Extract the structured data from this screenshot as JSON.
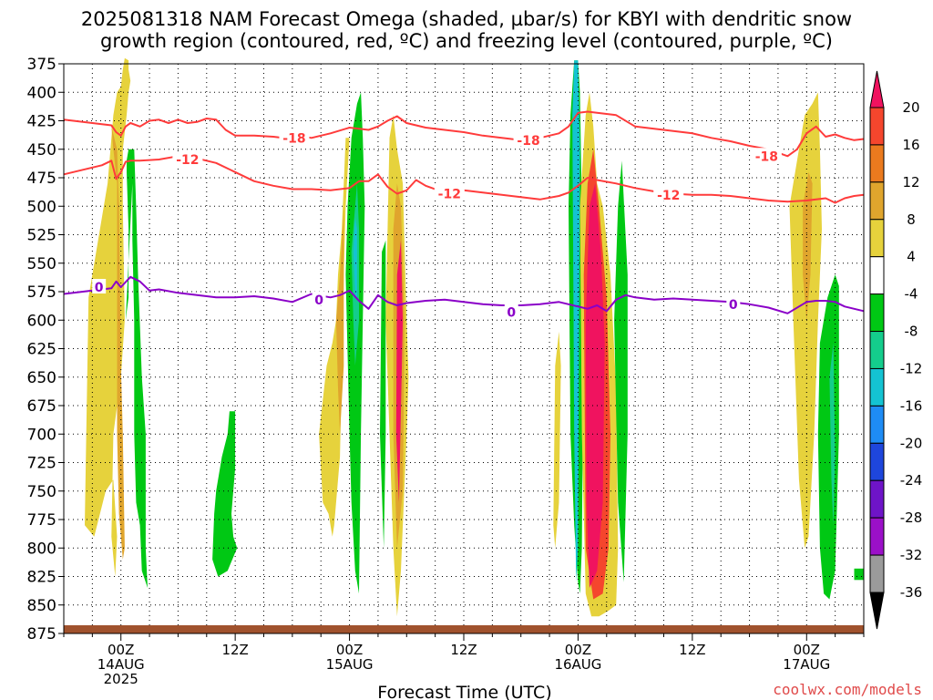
{
  "chart_data": {
    "type": "heatmap",
    "title_line1": "2025081318 NAM Forecast Omega (shaded, µbar/s) for KBYI with dendritic snow",
    "title_line2": "growth region (contoured, red, ºC) and freezing level (contoured, purple, ºC)",
    "xlabel": "Forecast Time (UTC)",
    "credit": "coolwx.com/models",
    "y_axis": {
      "unit": "mb",
      "reversed": true,
      "ylim": [
        875,
        375
      ],
      "ticks": [
        "375",
        "400",
        "425",
        "450",
        "475",
        "500",
        "525",
        "550",
        "575",
        "600",
        "625",
        "650",
        "675",
        "700",
        "725",
        "750",
        "775",
        "800",
        "825",
        "850",
        "875"
      ]
    },
    "x_axis": {
      "unit": "forecast hour",
      "xlim": [
        0,
        84
      ],
      "ticks": [
        {
          "hour": 6,
          "line1": "00Z",
          "line2": "14AUG",
          "line3": "2025"
        },
        {
          "hour": 18,
          "line1": "12Z",
          "line2": "",
          "line3": ""
        },
        {
          "hour": 30,
          "line1": "00Z",
          "line2": "15AUG",
          "line3": ""
        },
        {
          "hour": 42,
          "line1": "12Z",
          "line2": "",
          "line3": ""
        },
        {
          "hour": 54,
          "line1": "00Z",
          "line2": "16AUG",
          "line3": ""
        },
        {
          "hour": 66,
          "line1": "12Z",
          "line2": "",
          "line3": ""
        },
        {
          "hour": 78,
          "line1": "00Z",
          "line2": "17AUG",
          "line3": ""
        }
      ]
    },
    "colorbar": {
      "labels": [
        "20",
        "16",
        "12",
        "8",
        "4",
        "-4",
        "-8",
        "-12",
        "-16",
        "-20",
        "-24",
        "-28",
        "-32",
        "-36"
      ],
      "colors_top_to_bottom": [
        "#f0135f",
        "#f5462d",
        "#eb7a1e",
        "#e0a52d",
        "#e6d23c",
        "#ffffff",
        "#00c814",
        "#14cd8c",
        "#14c3d2",
        "#1e8cf5",
        "#1e46dc",
        "#6e14c8",
        "#9b10c8",
        "#9b9b9b",
        "#000000"
      ]
    },
    "ground_color": "#a0522d",
    "omega_regions": [
      {
        "level": "+4",
        "color": "#e6d23c",
        "x": [
          5.6,
          5.2,
          4.6,
          2.6,
          2.2,
          3.2,
          4.4,
          5.2,
          5.6,
          5.4,
          5.0,
          5.2,
          6.0,
          6.4,
          6.2,
          6.2,
          6.6,
          6.8,
          7.0,
          6.8,
          6.8,
          6.4,
          6.2,
          6.0
        ],
        "p": [
          400,
          420,
          480,
          580,
          780,
          790,
          750,
          740,
          790,
          825,
          790,
          700,
          650,
          600,
          500,
          450,
          420,
          400,
          390,
          380,
          372,
          370,
          380,
          395
        ]
      },
      {
        "level": "+8",
        "color": "#e0a52d",
        "x": [
          5.2,
          5.0,
          5.6,
          5.8,
          6.0,
          6.2,
          6.4,
          6.2,
          5.8,
          5.6,
          5.6,
          5.6
        ],
        "p": [
          450,
          430,
          450,
          500,
          640,
          700,
          800,
          810,
          770,
          700,
          600,
          480
        ]
      },
      {
        "level": "-4",
        "color": "#00c814",
        "x": [
          6.5,
          6.8,
          6.8,
          6.6,
          6.6,
          6.8,
          7.4,
          7.6,
          7.8,
          8.2,
          8.6,
          8.6,
          8.8,
          8.2,
          8.0,
          7.6,
          7.4,
          7.4,
          7.2,
          7.2
        ],
        "p": [
          600,
          580,
          520,
          470,
          460,
          450,
          450,
          500,
          560,
          650,
          700,
          800,
          835,
          820,
          780,
          760,
          700,
          600,
          530,
          480
        ]
      },
      {
        "level": "-4",
        "color": "#00c814",
        "x": [
          15.8,
          16.0,
          16.6,
          17.2,
          17.4,
          18.0,
          18.0,
          17.6,
          17.8,
          18.2,
          17.2,
          16.2,
          15.6
        ],
        "p": [
          770,
          750,
          720,
          700,
          680,
          680,
          730,
          770,
          790,
          800,
          820,
          825,
          810
        ]
      },
      {
        "level": "+4",
        "color": "#e6d23c",
        "x": [
          26.8,
          27.6,
          28.2,
          28.6,
          28.8,
          29.2,
          29.6,
          30.0,
          29.6,
          29.4,
          29.2,
          29.0,
          28.4,
          28.2,
          27.8,
          27.2
        ],
        "p": [
          700,
          640,
          620,
          600,
          560,
          520,
          440,
          440,
          500,
          560,
          640,
          720,
          780,
          790,
          770,
          760
        ]
      },
      {
        "level": "+8",
        "color": "#e0a52d",
        "x": [
          28.6,
          29.0,
          29.4,
          29.4,
          29.0,
          28.8
        ],
        "p": [
          600,
          560,
          500,
          640,
          700,
          660
        ]
      },
      {
        "level": "-4",
        "color": "#00c814",
        "x": [
          29.6,
          29.8,
          30.2,
          30.8,
          31.2,
          31.4,
          31.6,
          31.4,
          31.2,
          31.0,
          30.6,
          30.2,
          30.0
        ],
        "p": [
          560,
          500,
          440,
          410,
          400,
          440,
          500,
          600,
          700,
          840,
          820,
          760,
          700
        ]
      },
      {
        "level": "-8",
        "color": "#14cd8c",
        "x": [
          30.2,
          30.6,
          30.8,
          31.0,
          31.0,
          30.6,
          30.4
        ],
        "p": [
          540,
          500,
          480,
          520,
          600,
          640,
          600
        ]
      },
      {
        "level": "-12",
        "color": "#14c3d2",
        "x": [
          30.4,
          30.6,
          30.8,
          30.8,
          30.6
        ],
        "p": [
          540,
          510,
          520,
          580,
          580
        ]
      },
      {
        "level": "+4",
        "color": "#e6d23c",
        "x": [
          34.2,
          34.6,
          35.0,
          35.6,
          36.0,
          36.2,
          36.0,
          35.4,
          35.0,
          34.6,
          34.2,
          33.8
        ],
        "p": [
          440,
          420,
          450,
          480,
          600,
          650,
          700,
          820,
          860,
          800,
          700,
          600
        ]
      },
      {
        "level": "+8",
        "color": "#e0a52d",
        "x": [
          34.6,
          35.0,
          35.4,
          35.8,
          35.6,
          35.0,
          34.6
        ],
        "p": [
          520,
          480,
          500,
          600,
          750,
          800,
          700
        ]
      },
      {
        "level": "+20",
        "color": "#f0135f",
        "x": [
          35.0,
          35.4,
          35.6,
          35.2,
          34.9
        ],
        "p": [
          560,
          530,
          600,
          760,
          700
        ]
      },
      {
        "level": "-4",
        "color": "#00c814",
        "x": [
          33.4,
          33.8,
          33.8,
          33.6,
          33.2
        ],
        "p": [
          540,
          530,
          700,
          800,
          700
        ]
      },
      {
        "level": "+4",
        "color": "#e6d23c",
        "x": [
          51.6,
          52.0,
          52.2,
          52.0,
          51.6,
          51.4
        ],
        "p": [
          640,
          610,
          640,
          760,
          800,
          780
        ]
      },
      {
        "level": "-4",
        "color": "#00c814",
        "x": [
          53.0,
          53.2,
          53.6,
          54.0,
          54.2,
          54.4,
          54.6,
          54.4,
          54.2,
          54.0,
          53.6,
          53.2
        ],
        "p": [
          500,
          420,
          372,
          372,
          400,
          500,
          600,
          800,
          840,
          830,
          780,
          700
        ]
      },
      {
        "level": "-16",
        "color": "#14c3d2",
        "x": [
          53.4,
          53.6,
          54.0,
          54.2,
          54.0,
          53.8,
          53.6
        ],
        "p": [
          420,
          372,
          372,
          450,
          800,
          830,
          700
        ]
      },
      {
        "level": "+4",
        "color": "#e6d23c",
        "x": [
          54.2,
          54.8,
          55.2,
          55.6,
          56.0,
          56.6,
          57.4,
          58.0,
          58.2,
          58.0,
          57.2,
          56.2,
          55.4,
          54.8,
          54.4
        ],
        "p": [
          500,
          420,
          400,
          430,
          480,
          500,
          560,
          660,
          800,
          850,
          855,
          860,
          860,
          840,
          700
        ]
      },
      {
        "level": "+16",
        "color": "#f5462d",
        "x": [
          54.6,
          55.0,
          55.6,
          56.2,
          57.0,
          57.4,
          57.2,
          56.6,
          55.6,
          54.8
        ],
        "p": [
          560,
          480,
          450,
          500,
          580,
          700,
          800,
          840,
          845,
          800
        ]
      },
      {
        "level": "+20",
        "color": "#f0135f",
        "x": [
          54.8,
          55.2,
          55.8,
          56.4,
          56.8,
          56.6,
          56.0,
          55.2,
          54.9
        ],
        "p": [
          600,
          500,
          480,
          540,
          620,
          760,
          820,
          835,
          760
        ]
      },
      {
        "level": "-4",
        "color": "#00c814",
        "x": [
          57.8,
          58.2,
          58.6,
          59.2,
          59.2,
          58.8,
          58.2
        ],
        "p": [
          600,
          500,
          460,
          560,
          700,
          830,
          760
        ]
      },
      {
        "level": "+4",
        "color": "#e6d23c",
        "x": [
          77.0,
          77.8,
          78.6,
          79.2,
          79.4,
          79.6,
          79.2,
          78.8,
          78.2,
          77.8,
          77.2,
          76.6,
          76.2
        ],
        "p": [
          460,
          420,
          410,
          400,
          450,
          520,
          600,
          700,
          790,
          800,
          740,
          600,
          500
        ]
      },
      {
        "level": "+8",
        "color": "#e0a52d",
        "x": [
          77.6,
          78.2,
          78.6,
          78.4,
          78.0,
          77.6
        ],
        "p": [
          500,
          470,
          480,
          560,
          600,
          560
        ]
      },
      {
        "level": "-4",
        "color": "#00c814",
        "x": [
          79.4,
          79.8,
          80.2,
          80.6,
          81.0,
          81.4,
          81.4,
          81.0,
          80.4,
          79.8,
          79.4,
          79.2
        ],
        "p": [
          620,
          600,
          580,
          570,
          560,
          570,
          700,
          820,
          845,
          840,
          800,
          700
        ]
      },
      {
        "level": "-8",
        "color": "#14cd8c",
        "x": [
          80.4,
          80.8,
          81.0,
          80.8,
          80.6
        ],
        "p": [
          650,
          620,
          720,
          780,
          740
        ]
      },
      {
        "level": "-4",
        "color": "#00c814",
        "x": [
          83.0,
          84.0,
          84.0,
          83.0
        ],
        "p": [
          818,
          818,
          828,
          828
        ]
      }
    ],
    "series": [
      {
        "name": "-18",
        "color": "#ff3b3b",
        "x": [
          0,
          2,
          4,
          5,
          5.5,
          6,
          6.5,
          7,
          8,
          9,
          10,
          11,
          12,
          13,
          14,
          15,
          16,
          17,
          18,
          20,
          22,
          23,
          24,
          26,
          28,
          30,
          32,
          33,
          34,
          35,
          36,
          38,
          40,
          42,
          44,
          46,
          48,
          50,
          52,
          53,
          54,
          55,
          56,
          58,
          60,
          62,
          64,
          66,
          68,
          70,
          72,
          74,
          76,
          77,
          78,
          79,
          80,
          81,
          82,
          83,
          84
        ],
        "p": [
          424,
          426,
          428,
          429,
          435,
          438,
          430,
          427,
          430,
          425,
          424,
          427,
          424,
          427,
          426,
          423,
          424,
          433,
          438,
          438,
          439,
          440,
          437,
          440,
          436,
          431,
          433,
          430,
          425,
          421,
          427,
          431,
          433,
          435,
          438,
          440,
          442,
          440,
          436,
          430,
          418,
          417,
          418,
          420,
          430,
          432,
          434,
          436,
          440,
          443,
          447,
          450,
          456,
          450,
          436,
          430,
          439,
          437,
          440,
          442,
          441
        ],
        "labels": [
          {
            "text": "-18",
            "x": 24.2,
            "p": 440
          },
          {
            "text": "-18",
            "x": 48.8,
            "p": 442
          },
          {
            "text": "-18",
            "x": 73.8,
            "p": 456
          }
        ]
      },
      {
        "name": "-12",
        "color": "#ff3b3b",
        "x": [
          0,
          2,
          4,
          5,
          5.5,
          6,
          6.5,
          7,
          8,
          10,
          12,
          14,
          16,
          18,
          20,
          22,
          24,
          26,
          28,
          30,
          31,
          32,
          33,
          34,
          35,
          36,
          37,
          38,
          40,
          42,
          44,
          46,
          48,
          50,
          52,
          53,
          54,
          55,
          56,
          58,
          60,
          62,
          64,
          66,
          68,
          70,
          72,
          74,
          76,
          78,
          80,
          81,
          82,
          83,
          84
        ],
        "p": [
          472,
          468,
          464,
          460,
          476,
          470,
          461,
          460,
          460,
          459,
          456,
          458,
          462,
          470,
          478,
          482,
          485,
          485,
          486,
          484,
          478,
          478,
          472,
          483,
          489,
          486,
          477,
          482,
          488,
          486,
          488,
          490,
          492,
          494,
          491,
          488,
          482,
          475,
          477,
          480,
          484,
          487,
          489,
          490,
          490,
          491,
          493,
          495,
          496,
          495,
          493,
          497,
          493,
          491,
          490
        ],
        "labels": [
          {
            "text": "-12",
            "x": 13,
            "p": 459
          },
          {
            "text": "-12",
            "x": 40.5,
            "p": 489
          },
          {
            "text": "-12",
            "x": 63.5,
            "p": 490
          }
        ]
      },
      {
        "name": "0",
        "color": "#8a00c8",
        "x": [
          0,
          2,
          4,
          5,
          5.5,
          6,
          7,
          8,
          9,
          10,
          12,
          14,
          16,
          18,
          20,
          22,
          24,
          26,
          28,
          29,
          30,
          31,
          32,
          33,
          34,
          35,
          36,
          38,
          40,
          42,
          44,
          46,
          48,
          50,
          52,
          54,
          55,
          56,
          57,
          58,
          59,
          60,
          62,
          64,
          66,
          68,
          70,
          72,
          74,
          76,
          78,
          79,
          80,
          81,
          82,
          83,
          84
        ],
        "p": [
          577,
          575,
          573,
          572,
          566,
          571,
          562,
          566,
          574,
          573,
          576,
          578,
          580,
          580,
          579,
          581,
          584,
          577,
          580,
          578,
          574,
          583,
          590,
          578,
          584,
          587,
          585,
          583,
          582,
          584,
          586,
          587,
          587,
          586,
          584,
          588,
          590,
          587,
          592,
          582,
          578,
          580,
          582,
          581,
          582,
          583,
          584,
          586,
          589,
          594,
          584,
          583,
          583,
          584,
          588,
          590,
          592
        ],
        "labels": [
          {
            "text": "0",
            "x": 3.7,
            "p": 571
          },
          {
            "text": "0",
            "x": 26.8,
            "p": 582
          },
          {
            "text": "0",
            "x": 47,
            "p": 593
          },
          {
            "text": "0",
            "x": 70.3,
            "p": 586
          }
        ]
      }
    ]
  }
}
